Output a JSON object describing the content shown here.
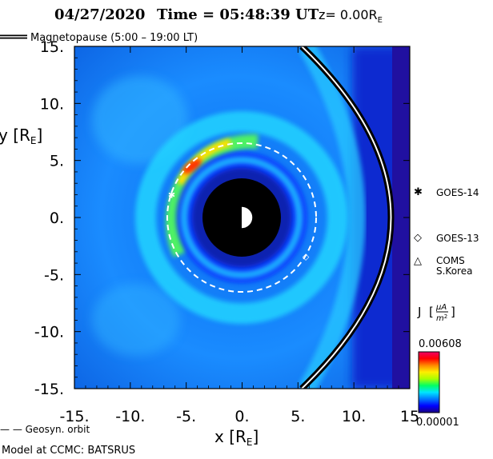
{
  "title": {
    "date": "04/27/2020",
    "time_label": "Time = 05:48:39 UT",
    "z_label": "z= 0.00R",
    "z_sub": "E"
  },
  "legend_top": {
    "label": "Magnetopause (5:00 – 19:00 LT)"
  },
  "markers": [
    {
      "symbol": "✱",
      "label": "GOES-14",
      "x": -6.3,
      "y": 2.0
    },
    {
      "symbol": "◇",
      "label": "GOES-13",
      "x": 5.7,
      "y": -3.4
    },
    {
      "symbol": "△",
      "label": "COMS",
      "label2": "S.Korea"
    }
  ],
  "footer": {
    "geosyn_label": "— — Geosyn. orbit",
    "model_label": "Model at CCMC: BATSRUS"
  },
  "colorbar": {
    "quantity_label": "J",
    "unit_numerator": "μA",
    "unit_denominator": "m",
    "unit_exp": "2",
    "max_label": "0.00608",
    "min_label": "0.00001",
    "colors": [
      "#1a0080",
      "#0000ff",
      "#0077ff",
      "#00e5ff",
      "#00ff66",
      "#aaff00",
      "#ffee00",
      "#ff8800",
      "#ff0000",
      "#ee0066"
    ]
  },
  "chart_data": {
    "type": "heatmap",
    "title": "04/27/2020 Time = 05:48:39 UT z= 0.00RE",
    "xlabel": "x [R",
    "xlabel_sub": "E",
    "ylabel": "y [R",
    "ylabel_sub": "E",
    "xlim": [
      -15,
      15
    ],
    "ylim": [
      -15,
      15
    ],
    "x_ticks": [
      -15,
      -10,
      -5,
      0,
      5,
      10,
      15
    ],
    "y_ticks": [
      -15,
      -10,
      -5,
      0,
      5,
      10,
      15
    ],
    "x_tick_labels": [
      "-15.",
      "-10.",
      "-5.",
      "0.",
      "5.",
      "10.",
      "15"
    ],
    "y_tick_labels": [
      "15.",
      "10.",
      "5.",
      "0.",
      "-5.",
      "-10.",
      "-15."
    ],
    "colorbar_range": [
      1e-05,
      0.00608
    ],
    "inner_boundary_radius": 3.5,
    "earth_radius": 1,
    "geosynchronous_orbit_radius": 6.6,
    "magnetopause_standoff_x": 13.5
  }
}
